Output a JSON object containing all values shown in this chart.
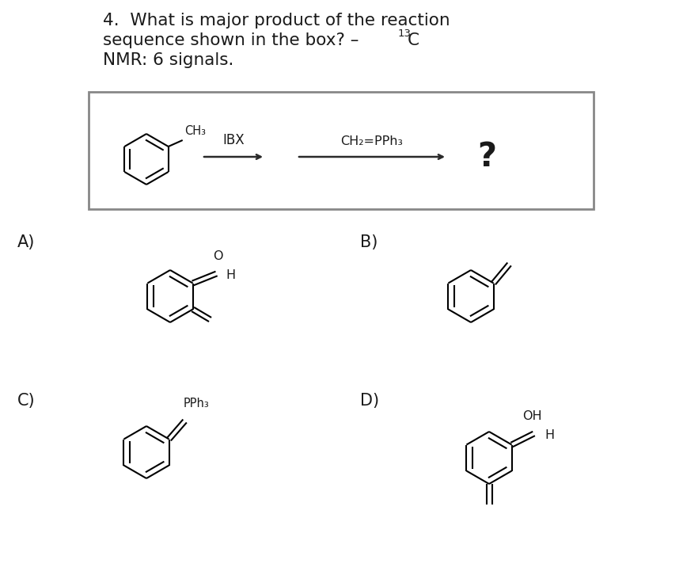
{
  "background": "#ffffff",
  "text_color": "#1a1a1a",
  "box_edge_color": "#888888",
  "arrow_color": "#2a2a2a",
  "title_line1": "4.  What is major product of the reaction",
  "title_line2": "sequence shown in the box? – ",
  "title_13": "13",
  "title_C": "C",
  "title_line3": "NMR: 6 signals.",
  "reactant_sub": "CH₃",
  "step1_label": "IBX",
  "step2_label": "CH₂=PPh₃",
  "question": "?",
  "labelA": "A)",
  "labelB": "B)",
  "labelC": "C)",
  "labelD": "D)",
  "A_O": "O",
  "A_H": "H",
  "C_PPh3": "PPh₃",
  "D_OH": "OH",
  "D_H": "H",
  "title_fs": 15.5,
  "label_fs": 15,
  "chem_lw": 1.5
}
